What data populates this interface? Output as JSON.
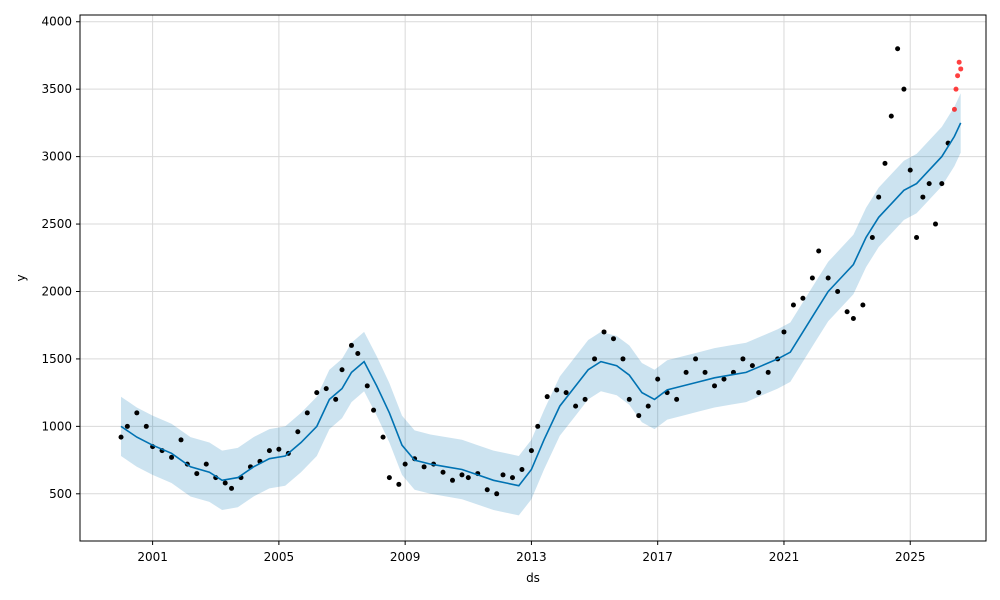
{
  "chart_data": {
    "type": "line",
    "xlabel": "ds",
    "ylabel": "y",
    "xlim": [
      1998.7,
      2027.4
    ],
    "ylim": [
      150,
      4050
    ],
    "x_ticks": [
      2001,
      2005,
      2009,
      2013,
      2017,
      2021,
      2025
    ],
    "x_tick_labels": [
      "2001",
      "2005",
      "2009",
      "2013",
      "2017",
      "2021",
      "2025"
    ],
    "y_ticks": [
      500,
      1000,
      1500,
      2000,
      2500,
      3000,
      3500,
      4000
    ],
    "y_tick_labels": [
      "500",
      "1000",
      "1500",
      "2000",
      "2500",
      "3000",
      "3500",
      "4000"
    ],
    "grid": true,
    "colors": {
      "observed": "#000000",
      "recent": "#ff0000",
      "forecast": "#0072b2",
      "interval": "#0072b2"
    },
    "series": [
      {
        "role": "observed",
        "x": [
          2000.0,
          2000.2,
          2000.5,
          2000.8,
          2001.0,
          2001.3,
          2001.6,
          2001.9,
          2002.1,
          2002.4,
          2002.7,
          2003.0,
          2003.3,
          2003.5,
          2003.8,
          2004.1,
          2004.4,
          2004.7,
          2005.0,
          2005.3,
          2005.6,
          2005.9,
          2006.2,
          2006.5,
          2006.8,
          2007.0,
          2007.3,
          2007.5,
          2007.8,
          2008.0,
          2008.3,
          2008.5,
          2008.8,
          2009.0,
          2009.3,
          2009.6,
          2009.9,
          2010.2,
          2010.5,
          2010.8,
          2011.0,
          2011.3,
          2011.6,
          2011.9,
          2012.1,
          2012.4,
          2012.7,
          2013.0,
          2013.2,
          2013.5,
          2013.8,
          2014.1,
          2014.4,
          2014.7,
          2015.0,
          2015.3,
          2015.6,
          2015.9,
          2016.1,
          2016.4,
          2016.7,
          2017.0,
          2017.3,
          2017.6,
          2017.9,
          2018.2,
          2018.5,
          2018.8,
          2019.1,
          2019.4,
          2019.7,
          2020.0,
          2020.2,
          2020.5,
          2020.8,
          2021.0,
          2021.3,
          2021.6,
          2021.9,
          2022.1,
          2022.4,
          2022.7,
          2023.0,
          2023.2,
          2023.5,
          2023.8,
          2024.0,
          2024.2,
          2024.4,
          2024.6,
          2024.8,
          2025.0,
          2025.2,
          2025.4,
          2025.6,
          2025.8,
          2026.0,
          2026.2
        ],
        "y": [
          920,
          1000,
          1100,
          1000,
          850,
          820,
          770,
          900,
          720,
          650,
          720,
          620,
          580,
          540,
          620,
          700,
          740,
          820,
          830,
          800,
          960,
          1100,
          1250,
          1280,
          1200,
          1420,
          1600,
          1540,
          1300,
          1120,
          920,
          620,
          570,
          720,
          760,
          700,
          720,
          660,
          600,
          640,
          620,
          650,
          530,
          500,
          640,
          620,
          680,
          820,
          1000,
          1220,
          1270,
          1250,
          1150,
          1200,
          1500,
          1700,
          1650,
          1500,
          1200,
          1080,
          1150,
          1350,
          1250,
          1200,
          1400,
          1500,
          1400,
          1300,
          1350,
          1400,
          1500,
          1450,
          1250,
          1400,
          1500,
          1700,
          1900,
          1950,
          2100,
          2300,
          2100,
          2000,
          1850,
          1800,
          1900,
          2400,
          2700,
          2950,
          3300,
          3800,
          3500,
          2900,
          2400,
          2700,
          2800,
          2500,
          2800,
          3100
        ]
      },
      {
        "role": "recent",
        "x": [
          2026.4,
          2026.45,
          2026.5,
          2026.55,
          2026.6
        ],
        "y": [
          3350,
          3500,
          3600,
          3700,
          3650
        ]
      },
      {
        "role": "forecast",
        "x": [
          2000.0,
          2000.5,
          2001.0,
          2001.6,
          2002.2,
          2002.8,
          2003.2,
          2003.7,
          2004.2,
          2004.7,
          2005.2,
          2005.7,
          2006.2,
          2006.6,
          2007.0,
          2007.3,
          2007.7,
          2008.1,
          2008.5,
          2008.9,
          2009.3,
          2009.8,
          2010.3,
          2010.8,
          2011.3,
          2011.8,
          2012.2,
          2012.6,
          2013.0,
          2013.4,
          2013.9,
          2014.4,
          2014.8,
          2015.2,
          2015.7,
          2016.1,
          2016.5,
          2016.9,
          2017.3,
          2017.8,
          2018.3,
          2018.8,
          2019.3,
          2019.8,
          2020.3,
          2020.8,
          2021.2,
          2021.6,
          2022.0,
          2022.4,
          2022.8,
          2023.2,
          2023.6,
          2024.0,
          2024.4,
          2024.8,
          2025.2,
          2025.6,
          2026.0,
          2026.4,
          2026.6
        ],
        "y": [
          1000,
          920,
          860,
          800,
          700,
          660,
          600,
          620,
          700,
          760,
          780,
          880,
          1000,
          1200,
          1280,
          1400,
          1480,
          1300,
          1100,
          860,
          750,
          720,
          700,
          680,
          640,
          600,
          580,
          560,
          680,
          900,
          1150,
          1300,
          1420,
          1480,
          1450,
          1380,
          1250,
          1200,
          1270,
          1300,
          1330,
          1360,
          1380,
          1400,
          1450,
          1500,
          1550,
          1700,
          1850,
          2000,
          2100,
          2200,
          2400,
          2550,
          2650,
          2750,
          2800,
          2900,
          3000,
          3150,
          3250
        ]
      },
      {
        "role": "interval",
        "x": [
          2000.0,
          2000.5,
          2001.0,
          2001.6,
          2002.2,
          2002.8,
          2003.2,
          2003.7,
          2004.2,
          2004.7,
          2005.2,
          2005.7,
          2006.2,
          2006.6,
          2007.0,
          2007.3,
          2007.7,
          2008.1,
          2008.5,
          2008.9,
          2009.3,
          2009.8,
          2010.3,
          2010.8,
          2011.3,
          2011.8,
          2012.2,
          2012.6,
          2013.0,
          2013.4,
          2013.9,
          2014.4,
          2014.8,
          2015.2,
          2015.7,
          2016.1,
          2016.5,
          2016.9,
          2017.3,
          2017.8,
          2018.3,
          2018.8,
          2019.3,
          2019.8,
          2020.3,
          2020.8,
          2021.2,
          2021.6,
          2022.0,
          2022.4,
          2022.8,
          2023.2,
          2023.6,
          2024.0,
          2024.4,
          2024.8,
          2025.2,
          2025.6,
          2026.0,
          2026.4,
          2026.6
        ],
        "lower": [
          780,
          700,
          640,
          580,
          480,
          440,
          380,
          400,
          480,
          540,
          560,
          660,
          780,
          980,
          1060,
          1180,
          1260,
          1080,
          880,
          640,
          530,
          500,
          480,
          460,
          420,
          380,
          360,
          340,
          460,
          680,
          930,
          1080,
          1200,
          1260,
          1230,
          1160,
          1030,
          980,
          1050,
          1080,
          1110,
          1140,
          1160,
          1180,
          1230,
          1280,
          1330,
          1480,
          1630,
          1780,
          1880,
          1980,
          2180,
          2330,
          2430,
          2530,
          2580,
          2680,
          2780,
          2930,
          3030
        ],
        "upper": [
          1220,
          1140,
          1080,
          1020,
          920,
          880,
          820,
          840,
          920,
          980,
          1000,
          1100,
          1220,
          1420,
          1500,
          1620,
          1700,
          1520,
          1320,
          1080,
          970,
          940,
          920,
          900,
          860,
          820,
          800,
          780,
          900,
          1120,
          1370,
          1520,
          1640,
          1700,
          1670,
          1600,
          1470,
          1420,
          1490,
          1520,
          1550,
          1580,
          1600,
          1620,
          1670,
          1720,
          1770,
          1920,
          2070,
          2220,
          2320,
          2420,
          2620,
          2770,
          2870,
          2970,
          3020,
          3120,
          3220,
          3370,
          3470
        ]
      }
    ]
  }
}
